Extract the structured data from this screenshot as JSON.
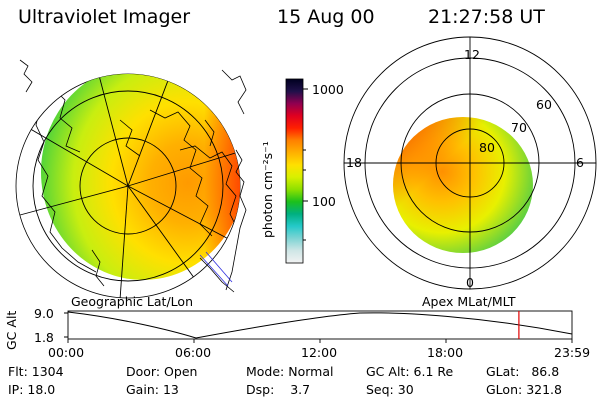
{
  "header": {
    "instrument": "Ultraviolet Imager",
    "date": "15 Aug 00",
    "time": "21:27:58 UT"
  },
  "colorbar": {
    "unit_label": "photon cm⁻²s⁻¹",
    "tick_1000": "1000",
    "tick_100": "100",
    "colors": [
      "#f2f2f2",
      "#cfe6e6",
      "#7fd4d4",
      "#25c9c9",
      "#00b080",
      "#1cc01c",
      "#8ee000",
      "#d8f000",
      "#ffe000",
      "#ffb000",
      "#ff8000",
      "#ff2000",
      "#e00020",
      "#900050",
      "#20104a",
      "#000020"
    ]
  },
  "left_map": {
    "caption": "Geographic Lat/Lon"
  },
  "right_map": {
    "caption": "Apex MLat/MLT",
    "mlt_labels": {
      "top": "12",
      "left": "18",
      "right": "6",
      "bottom": "0"
    },
    "lat_labels": [
      "60",
      "70",
      "80"
    ]
  },
  "altitude_plot": {
    "axis_label": "GC Alt",
    "y_max": "9.0",
    "y_min": "1.8",
    "x_ticks": [
      "00:00",
      "06:00",
      "12:00",
      "18:00",
      "23:59"
    ],
    "marker_time_hours": 21.47,
    "marker_color": "#e00000"
  },
  "status": {
    "flt_label": "Flt:",
    "flt_value": "1304",
    "ip_label": "IP:",
    "ip_value": "18.0",
    "door_label": "Door:",
    "door_value": "Open",
    "gain_label": "Gain:",
    "gain_value": "13",
    "mode_label": "Mode:",
    "mode_value": "Normal",
    "dsp_label": "Dsp:",
    "dsp_value": "3.7",
    "gcalt_label": "GC Alt:",
    "gcalt_value": "6.1 Re",
    "seq_label": "Seq:",
    "seq_value": "30",
    "glat_label": "GLat:",
    "glat_value": "86.8",
    "glon_label": "GLon:",
    "glon_value": "321.8"
  }
}
